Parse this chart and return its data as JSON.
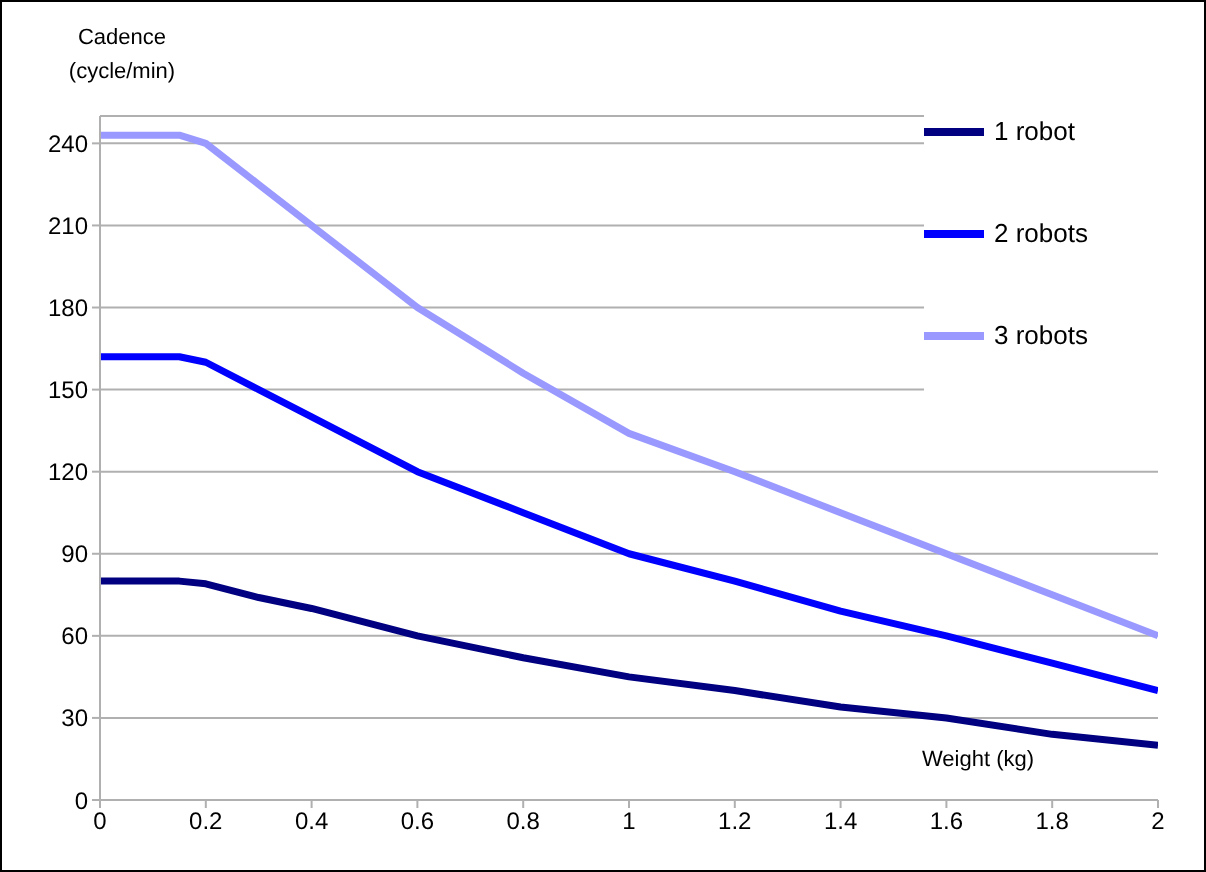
{
  "chart_data": {
    "type": "line",
    "xlabel": "Weight (kg)",
    "ylabel": "Cadence (cycle/min)",
    "x": [
      0,
      0.15,
      0.2,
      0.3,
      0.4,
      0.6,
      0.8,
      1,
      1.2,
      1.4,
      1.6,
      1.8,
      2
    ],
    "series": [
      {
        "name": "1 robot",
        "color": "#000080",
        "values": [
          80,
          80,
          79,
          74,
          70,
          60,
          52,
          45,
          40,
          34,
          30,
          24,
          20
        ]
      },
      {
        "name": "2 robots",
        "color": "#0000ff",
        "values": [
          162,
          162,
          160,
          150,
          140,
          120,
          105,
          90,
          80,
          69,
          60,
          50,
          40
        ]
      },
      {
        "name": "3 robots",
        "color": "#9999ff",
        "values": [
          243,
          243,
          240,
          225,
          210,
          180,
          156,
          134,
          120,
          105,
          90,
          75,
          60
        ]
      }
    ],
    "xlim": [
      0,
      2
    ],
    "xticks": [
      0,
      0.2,
      0.4,
      0.6,
      0.8,
      1,
      1.2,
      1.4,
      1.6,
      1.8,
      2
    ],
    "ylim": [
      0,
      250
    ],
    "yticks": [
      0,
      30,
      60,
      90,
      120,
      150,
      180,
      210,
      240
    ],
    "grid": "y",
    "legend": "top right",
    "marker": "none",
    "line_style": "solid"
  }
}
